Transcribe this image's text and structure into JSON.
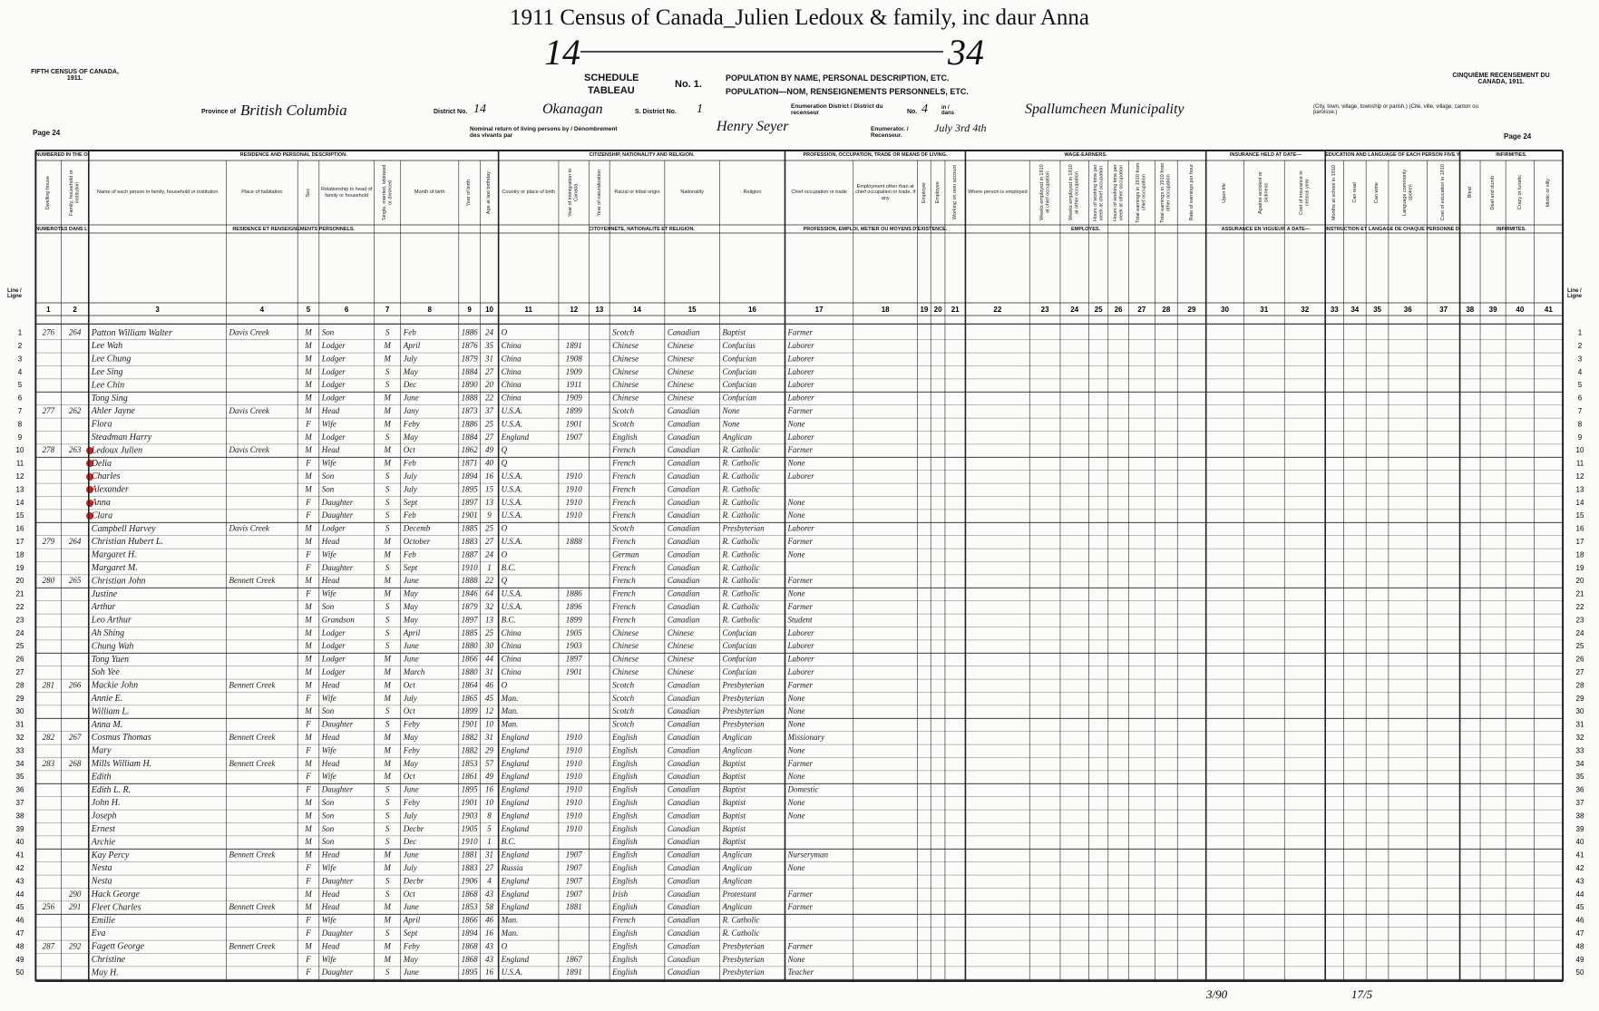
{
  "header": {
    "title": "1911 Census of Canada_Julien Ledoux & family, inc daur Anna",
    "page_ref_left": "14",
    "page_ref_right": "34",
    "left_heading": "FIFTH CENSUS OF CANADA, 1911.",
    "right_heading": "CINQUIÈME RECENSEMENT DU CANADA, 1911.",
    "schedule": "SCHEDULE",
    "tableau": "TABLEAU",
    "number": "No. 1.",
    "schedule_en": "POPULATION BY NAME, PERSONAL DESCRIPTION, ETC.",
    "schedule_fr": "POPULATION—NOM, RENSEIGNEMENTS PERSONNELS, ETC.",
    "province_label": "Province of",
    "province": "British Columbia",
    "district_label": "District No.",
    "district_no": "14",
    "district": "Okanagan",
    "subdistrict_label": "S. District No.",
    "subdistrict_no": "1",
    "enum_label": "Enumeration District / District du recenseur",
    "enum_no_label": "No.",
    "enum_no": "4",
    "in_label": "in / dans",
    "place": "Spallumcheen Municipality",
    "place_note": "(City, town, village, township or parish.) (Cité, ville, village, canton ou paroisse.)",
    "page_left": "Page 24",
    "page_right": "Page 24",
    "nominal_label": "Nominal return of living persons by / Dénombrement des vivants par",
    "enumerator": "Henry Seyer",
    "enumerator_label": "Enumerator. / Recenseur.",
    "date": "July 3rd 4th",
    "line_label": "Line / Ligne"
  },
  "sections": [
    {
      "label": "NUMBERED IN THE ORDER OF VISITATION.",
      "label_fr": "NUMÉROTÉS DANS L'ORDRE DES VISITES."
    },
    {
      "label": "RESIDENCE AND PERSONAL DESCRIPTION.",
      "label_fr": "RÉSIDENCE ET RENSEIGNEMENTS PERSONNELS."
    },
    {
      "label": "CITIZENSHIP, NATIONALITY AND RELIGION.",
      "label_fr": "CITOYENNETÉ, NATIONALITÉ ET RELIGION."
    },
    {
      "label": "PROFESSION, OCCUPATION, TRADE OR MEANS OF LIVING.",
      "label_fr": "PROFESSION, EMPLOI, MÉTIER OU MOYENS D'EXISTENCE."
    },
    {
      "label": "WAGE-EARNERS.",
      "label_fr": "EMPLOYÉS."
    },
    {
      "label": "INSURANCE HELD AT DATE—",
      "label_fr": "ASSURANCE EN VIGUEUR À DATE—"
    },
    {
      "label": "EDUCATION AND LANGUAGE OF EACH PERSON FIVE YEARS OF AGE AND OVER.",
      "label_fr": "INSTRUCTION ET LANGAGE DE CHAQUE PERSONNE DE CINQ ANS ET PLUS."
    },
    {
      "label": "INFIRMITIES.",
      "label_fr": "INFIRMITÉS."
    }
  ],
  "column_heads": [
    "Dwelling house",
    "Family, household or institution",
    "Name of each person in family, household or institution",
    "Place of habitation",
    "Sex",
    "Relationship to head of family or household",
    "Single, married, widowed or divorced",
    "Month of birth",
    "Year of birth",
    "Age at last birthday",
    "Country or place of birth",
    "Year of immigration to Canada",
    "Year of naturalization",
    "Racial or tribal origin",
    "Nationality",
    "Religion",
    "Chief occupation or trade",
    "Employment other than at chief occupation or trade, if any",
    "Employer",
    "Employee",
    "Working on own account",
    "Where person is employed",
    "Weeks employed in 1910 at chief occupation",
    "Weeks employed in 1910 at other occupation",
    "Hours of working time per week at chief occupation",
    "Hours of working time per week at other occupation",
    "Total earnings in 1910 from chief occupation",
    "Total earnings in 1910 from other occupation",
    "Rate of earnings per hour",
    "Upon life",
    "Against accident or sickness",
    "Cost of insurance in census year",
    "Months at school in 1910",
    "Can read",
    "Can write",
    "Language commonly spoken",
    "Cost of education in 1910",
    "Blind",
    "Deaf and dumb",
    "Crazy or lunatic",
    "Idiotic or silly"
  ],
  "column_numbers": [
    1,
    2,
    3,
    4,
    5,
    6,
    7,
    8,
    9,
    10,
    11,
    12,
    13,
    14,
    15,
    16,
    17,
    18,
    19,
    20,
    21,
    22,
    23,
    24,
    25,
    26,
    27,
    28,
    29,
    30,
    31,
    32,
    33,
    34,
    35,
    36,
    37,
    38,
    39,
    40,
    41
  ],
  "rows": [
    [
      1,
      "276",
      "264",
      "Patton William Walter",
      "Davis Creek",
      "M",
      "Son",
      "S",
      "Feb",
      1886,
      24,
      "O",
      null,
      "Scotch",
      "Canadian",
      "Baptist",
      "Farmer"
    ],
    [
      2,
      null,
      null,
      "Lee Wah",
      null,
      "M",
      "Lodger",
      "M",
      "April",
      1876,
      35,
      "China",
      "1891",
      "Chinese",
      "Chinese",
      "Confucius",
      "Laborer"
    ],
    [
      3,
      null,
      null,
      "Lee Chung",
      null,
      "M",
      "Lodger",
      "M",
      "July",
      1879,
      31,
      "China",
      "1908",
      "Chinese",
      "Chinese",
      "Confucian",
      "Laborer"
    ],
    [
      4,
      null,
      null,
      "Lee Sing",
      null,
      "M",
      "Lodger",
      "S",
      "May",
      1884,
      27,
      "China",
      "1909",
      "Chinese",
      "Chinese",
      "Confucian",
      "Laborer"
    ],
    [
      5,
      null,
      null,
      "Lee Chin",
      null,
      "M",
      "Lodger",
      "S",
      "Dec",
      1890,
      20,
      "China",
      "1911",
      "Chinese",
      "Chinese",
      "Confucian",
      "Laborer"
    ],
    [
      6,
      null,
      null,
      "Tong Sing",
      null,
      "M",
      "Lodger",
      "M",
      "June",
      1888,
      22,
      "China",
      "1909",
      "Chinese",
      "Chinese",
      "Confucian",
      "Laborer"
    ],
    [
      7,
      "277",
      "262",
      "Ahler Jayne",
      "Davis Creek",
      "M",
      "Head",
      "M",
      "Jany",
      1873,
      37,
      "U.S.A.",
      "1899",
      "Scotch",
      "Canadian",
      "None",
      "Farmer"
    ],
    [
      8,
      null,
      null,
      "Flora",
      null,
      "F",
      "Wife",
      "M",
      "Feby",
      1886,
      25,
      "U.S.A.",
      "1901",
      "Scotch",
      "Canadian",
      "None",
      "None"
    ],
    [
      9,
      null,
      null,
      "Steadman Harry",
      null,
      "M",
      "Lodger",
      "S",
      "May",
      1884,
      27,
      "England",
      "1907",
      "English",
      "Canadian",
      "Anglican",
      "Laborer"
    ],
    [
      10,
      "278",
      "263",
      "Ledoux Julien",
      "Davis Creek",
      "M",
      "Head",
      "M",
      "Oct",
      1862,
      49,
      "Q",
      null,
      "French",
      "Canadian",
      "R. Catholic",
      "Farmer"
    ],
    [
      11,
      null,
      null,
      "Delia",
      null,
      "F",
      "Wife",
      "M",
      "Feb",
      1871,
      40,
      "Q",
      null,
      "French",
      "Canadian",
      "R. Catholic",
      "None"
    ],
    [
      12,
      null,
      null,
      "Charles",
      null,
      "M",
      "Son",
      "S",
      "July",
      1894,
      16,
      "U.S.A.",
      "1910",
      "French",
      "Canadian",
      "R. Catholic",
      "Laborer"
    ],
    [
      13,
      null,
      null,
      "Alexander",
      null,
      "M",
      "Son",
      "S",
      "July",
      1895,
      15,
      "U.S.A.",
      "1910",
      "French",
      "Canadian",
      "R. Catholic",
      null
    ],
    [
      14,
      null,
      null,
      "Anna",
      null,
      "F",
      "Daughter",
      "S",
      "Sept",
      1897,
      13,
      "U.S.A.",
      "1910",
      "French",
      "Canadian",
      "R. Catholic",
      "None"
    ],
    [
      15,
      null,
      null,
      "Clara",
      null,
      "F",
      "Daughter",
      "S",
      "Feb",
      1901,
      9,
      "U.S.A.",
      "1910",
      "French",
      "Canadian",
      "R. Catholic",
      "None"
    ],
    [
      16,
      null,
      null,
      "Campbell Harvey",
      "Davis Creek",
      "M",
      "Lodger",
      "S",
      "Decemb",
      1885,
      25,
      "O",
      null,
      "Scotch",
      "Canadian",
      "Presbyterian",
      "Laborer"
    ],
    [
      17,
      "279",
      "264",
      "Christian Hubert L.",
      null,
      "M",
      "Head",
      "M",
      "October",
      1883,
      27,
      "U.S.A.",
      "1888",
      "French",
      "Canadian",
      "R. Catholic",
      "Farmer"
    ],
    [
      18,
      null,
      null,
      "Margaret H.",
      null,
      "F",
      "Wife",
      "M",
      "Feb",
      1887,
      24,
      "O",
      null,
      "German",
      "Canadian",
      "R. Catholic",
      "None"
    ],
    [
      19,
      null,
      null,
      "Margaret M.",
      null,
      "F",
      "Daughter",
      "S",
      "Sept",
      1910,
      1,
      "B.C.",
      null,
      "French",
      "Canadian",
      "R. Catholic",
      null
    ],
    [
      20,
      "280",
      "265",
      "Christian John",
      "Bennett Creek",
      "M",
      "Head",
      "M",
      "June",
      1888,
      22,
      "Q",
      null,
      "French",
      "Canadian",
      "R. Catholic",
      "Farmer"
    ],
    [
      21,
      null,
      null,
      "Justine",
      null,
      "F",
      "Wife",
      "M",
      "May",
      1846,
      64,
      "U.S.A.",
      "1886",
      "French",
      "Canadian",
      "R. Catholic",
      "None"
    ],
    [
      22,
      null,
      null,
      "Arthur",
      null,
      "M",
      "Son",
      "S",
      "May",
      1879,
      32,
      "U.S.A.",
      "1896",
      "French",
      "Canadian",
      "R. Catholic",
      "Farmer"
    ],
    [
      23,
      null,
      null,
      "Leo Arthur",
      null,
      "M",
      "Grandson",
      "S",
      "May",
      1897,
      13,
      "B.C.",
      "1899",
      "French",
      "Canadian",
      "R. Catholic",
      "Student"
    ],
    [
      24,
      null,
      null,
      "Ah Shing",
      null,
      "M",
      "Lodger",
      "S",
      "April",
      1885,
      25,
      "China",
      "1905",
      "Chinese",
      "Chinese",
      "Confucian",
      "Laborer"
    ],
    [
      25,
      null,
      null,
      "Chung Wah",
      null,
      "M",
      "Lodger",
      "S",
      "June",
      1880,
      30,
      "China",
      "1903",
      "Chinese",
      "Chinese",
      "Confucian",
      "Laborer"
    ],
    [
      26,
      null,
      null,
      "Tong Yuen",
      null,
      "M",
      "Lodger",
      "M",
      "June",
      1866,
      44,
      "China",
      "1897",
      "Chinese",
      "Chinese",
      "Confucian",
      "Laborer"
    ],
    [
      27,
      null,
      null,
      "Soh Yee",
      null,
      "M",
      "Lodger",
      "M",
      "March",
      1880,
      31,
      "China",
      "1901",
      "Chinese",
      "Chinese",
      "Confucian",
      "Laborer"
    ],
    [
      28,
      "281",
      "266",
      "Mackie John",
      "Bennett Creek",
      "M",
      "Head",
      "M",
      "Oct",
      1864,
      46,
      "O",
      null,
      "Scotch",
      "Canadian",
      "Presbyterian",
      "Farmer"
    ],
    [
      29,
      null,
      null,
      "Annie E.",
      null,
      "F",
      "Wife",
      "M",
      "July",
      1865,
      45,
      "Man.",
      null,
      "Scotch",
      "Canadian",
      "Presbyterian",
      "None"
    ],
    [
      30,
      null,
      null,
      "William L.",
      null,
      "M",
      "Son",
      "S",
      "Oct",
      1899,
      12,
      "Man.",
      null,
      "Scotch",
      "Canadian",
      "Presbyterian",
      "None"
    ],
    [
      31,
      null,
      null,
      "Anna M.",
      null,
      "F",
      "Daughter",
      "S",
      "Feby",
      1901,
      10,
      "Man.",
      null,
      "Scotch",
      "Canadian",
      "Presbyterian",
      "None"
    ],
    [
      32,
      "282",
      "267",
      "Cosmus Thomas",
      "Bennett Creek",
      "M",
      "Head",
      "M",
      "May",
      1882,
      31,
      "England",
      "1910",
      "English",
      "Canadian",
      "Anglican",
      "Missionary"
    ],
    [
      33,
      null,
      null,
      "Mary",
      null,
      "F",
      "Wife",
      "M",
      "Feby",
      1882,
      29,
      "England",
      "1910",
      "English",
      "Canadian",
      "Anglican",
      "None"
    ],
    [
      34,
      "283",
      "268",
      "Mills William H.",
      "Bennett Creek",
      "M",
      "Head",
      "M",
      "May",
      1853,
      57,
      "England",
      "1910",
      "English",
      "Canadian",
      "Baptist",
      "Farmer"
    ],
    [
      35,
      null,
      null,
      "Edith",
      null,
      "F",
      "Wife",
      "M",
      "Oct",
      1861,
      49,
      "England",
      "1910",
      "English",
      "Canadian",
      "Baptist",
      "None"
    ],
    [
      36,
      null,
      null,
      "Edith L. R.",
      null,
      "F",
      "Daughter",
      "S",
      "June",
      1895,
      16,
      "England",
      "1910",
      "English",
      "Canadian",
      "Baptist",
      "Domestic"
    ],
    [
      37,
      null,
      null,
      "John H.",
      null,
      "M",
      "Son",
      "S",
      "Feby",
      1901,
      10,
      "England",
      "1910",
      "English",
      "Canadian",
      "Baptist",
      "None"
    ],
    [
      38,
      null,
      null,
      "Joseph",
      null,
      "M",
      "Son",
      "S",
      "July",
      1903,
      8,
      "England",
      "1910",
      "English",
      "Canadian",
      "Baptist",
      "None"
    ],
    [
      39,
      null,
      null,
      "Ernest",
      null,
      "M",
      "Son",
      "S",
      "Decbr",
      1905,
      5,
      "England",
      "1910",
      "English",
      "Canadian",
      "Baptist",
      null
    ],
    [
      40,
      null,
      null,
      "Archie",
      null,
      "M",
      "Son",
      "S",
      "Dec",
      1910,
      1,
      "B.C.",
      null,
      "English",
      "Canadian",
      "Baptist",
      null
    ],
    [
      41,
      null,
      null,
      "Kay Percy",
      "Bennett Creek",
      "M",
      "Head",
      "M",
      "June",
      1881,
      31,
      "England",
      "1907",
      "English",
      "Canadian",
      "Anglican",
      "Nurseryman"
    ],
    [
      42,
      null,
      null,
      "Nesta",
      null,
      "F",
      "Wife",
      "M",
      "July",
      1883,
      27,
      "Russia",
      "1907",
      "English",
      "Canadian",
      "Anglican",
      "None"
    ],
    [
      43,
      null,
      null,
      "Nesta",
      null,
      "F",
      "Daughter",
      "S",
      "Decbr",
      1906,
      4,
      "England",
      "1907",
      "English",
      "Canadian",
      "Anglican",
      null
    ],
    [
      44,
      null,
      "290",
      "Hack George",
      null,
      "M",
      "Head",
      "S",
      "Oct",
      1868,
      43,
      "England",
      "1907",
      "Irish",
      "Canadian",
      "Protestant",
      "Farmer"
    ],
    [
      45,
      "256",
      "291",
      "Fleet Charles",
      "Bennett Creek",
      "M",
      "Head",
      "M",
      "June",
      1853,
      58,
      "England",
      "1881",
      "English",
      "Canadian",
      "Anglican",
      "Farmer"
    ],
    [
      46,
      null,
      null,
      "Emilie",
      null,
      "F",
      "Wife",
      "M",
      "April",
      1866,
      46,
      "Man.",
      null,
      "French",
      "Canadian",
      "R. Catholic",
      null
    ],
    [
      47,
      null,
      null,
      "Eva",
      null,
      "F",
      "Daughter",
      "S",
      "Sept",
      1894,
      16,
      "Man.",
      null,
      "English",
      "Canadian",
      "R. Catholic",
      null
    ],
    [
      48,
      "287",
      "292",
      "Fagett George",
      "Bennett Creek",
      "M",
      "Head",
      "M",
      "Feby",
      1868,
      43,
      "O",
      null,
      "English",
      "Canadian",
      "Presbyterian",
      "Farmer"
    ],
    [
      49,
      null,
      null,
      "Christine",
      null,
      "F",
      "Wife",
      "M",
      "May",
      1868,
      43,
      "England",
      "1867",
      "English",
      "Canadian",
      "Presbyterian",
      "None"
    ],
    [
      50,
      null,
      null,
      "May H.",
      null,
      "F",
      "Daughter",
      "S",
      "June",
      1895,
      16,
      "U.S.A.",
      "1891",
      "English",
      "Canadian",
      "Presbyterian",
      "Teacher"
    ]
  ],
  "bottom_notes": [
    "3/90",
    "17/5"
  ]
}
